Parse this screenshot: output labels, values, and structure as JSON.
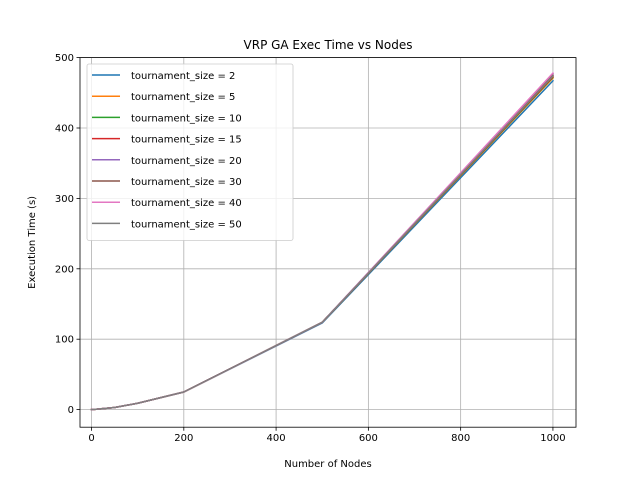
{
  "chart_data": {
    "type": "line",
    "title": "VRP GA Exec Time vs Nodes",
    "xlabel": "Number of Nodes",
    "ylabel": "Execution Time (s)",
    "xlim": [
      -25,
      1050
    ],
    "ylim": [
      -25,
      500
    ],
    "xticks": [
      0,
      200,
      400,
      600,
      800,
      1000
    ],
    "yticks": [
      0,
      100,
      200,
      300,
      400,
      500
    ],
    "grid": true,
    "legend_position": "top-left",
    "x": [
      0,
      10,
      50,
      100,
      200,
      500,
      1000
    ],
    "series": [
      {
        "name": "tournament_size = 2",
        "color": "#1f77b4",
        "values": [
          0,
          0.5,
          3,
          9,
          25,
          123,
          467
        ]
      },
      {
        "name": "tournament_size = 5",
        "color": "#ff7f0e",
        "values": [
          0,
          0.5,
          3,
          9,
          25,
          124,
          471
        ]
      },
      {
        "name": "tournament_size = 10",
        "color": "#2ca02c",
        "values": [
          0,
          0.5,
          3,
          9,
          25,
          124,
          472
        ]
      },
      {
        "name": "tournament_size = 15",
        "color": "#d62728",
        "values": [
          0,
          0.5,
          3,
          9,
          25,
          124,
          473
        ]
      },
      {
        "name": "tournament_size = 20",
        "color": "#9467bd",
        "values": [
          0,
          0.5,
          3,
          9,
          25,
          124,
          477
        ]
      },
      {
        "name": "tournament_size = 30",
        "color": "#8c564b",
        "values": [
          0,
          0.5,
          3,
          9,
          25,
          124,
          475
        ]
      },
      {
        "name": "tournament_size = 40",
        "color": "#e377c2",
        "values": [
          0,
          0.5,
          3,
          9,
          25,
          124,
          478
        ]
      },
      {
        "name": "tournament_size = 50",
        "color": "#7f7f7f",
        "values": [
          0,
          0.5,
          3,
          9,
          25,
          124,
          474
        ]
      }
    ]
  }
}
